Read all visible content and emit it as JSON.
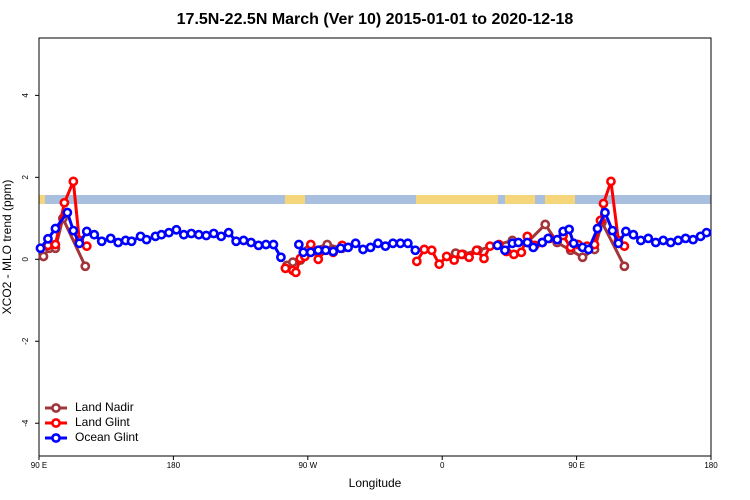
{
  "chart_data": {
    "type": "line",
    "title": "17.5N-22.5N March (Ver 10)   2015-01-01 to 2020-12-18",
    "x_label": "Longitude",
    "y_label": "XCO2 - MLO trend (ppm)",
    "xlim": [
      90,
      540
    ],
    "ylim": [
      -4.8,
      5.4
    ],
    "xticks": [
      {
        "value": 90,
        "label": "90 E"
      },
      {
        "value": 180,
        "label": "180"
      },
      {
        "value": 270,
        "label": "90 W"
      },
      {
        "value": 360,
        "label": "0"
      },
      {
        "value": 450,
        "label": "90 E"
      },
      {
        "value": 540,
        "label": "180"
      }
    ],
    "yticks": [
      -4,
      -2,
      0,
      2,
      4
    ],
    "legend": "bottom-left",
    "series": [
      {
        "name": "Land Nadir",
        "color": "#a0353a",
        "x": [
          93,
          97,
          101,
          106,
          121,
          200,
          256,
          260,
          265,
          270,
          283,
          293,
          350,
          369,
          374,
          384,
          407,
          417,
          429,
          437,
          446,
          454,
          462,
          467,
          482
        ],
        "values": [
          0.07,
          0.27,
          0.27,
          1.0,
          -0.17,
          null,
          -0.15,
          -0.07,
          -0.02,
          0.22,
          0.36,
          0.27,
          null,
          0.15,
          0.12,
          0.22,
          0.46,
          0.41,
          0.85,
          0.41,
          0.22,
          0.05,
          0.24,
          0.9,
          -0.17
        ]
      },
      {
        "name": "Land Glint",
        "color": "#ff0000",
        "x": [
          96,
          101,
          107,
          113,
          117,
          122,
          200,
          255,
          260,
          262,
          265,
          268,
          272,
          277,
          282,
          287,
          293,
          300,
          343,
          348,
          353,
          358,
          363,
          368,
          373,
          378,
          383,
          388,
          392,
          398,
          403,
          408,
          413,
          417,
          422,
          427,
          432,
          441,
          446,
          451,
          457,
          462,
          466,
          468,
          473,
          478,
          482
        ],
        "values": [
          0.34,
          0.36,
          1.38,
          1.9,
          0.46,
          0.32,
          null,
          -0.22,
          -0.27,
          -0.32,
          0.02,
          0.07,
          0.36,
          0,
          0.22,
          0.17,
          0.34,
          null,
          -0.05,
          0.24,
          0.22,
          -0.12,
          0.07,
          -0.02,
          0.12,
          0.05,
          0.22,
          0.02,
          0.32,
          0.36,
          0.19,
          0.12,
          0.17,
          0.56,
          0.34,
          0.41,
          0.51,
          0.58,
          0.29,
          0.36,
          0.32,
          0.36,
          0.95,
          1.36,
          1.9,
          0.46,
          0.32
        ]
      },
      {
        "name": "Ocean Glint",
        "color": "#0000ff",
        "x": [
          91,
          96,
          101,
          109,
          113,
          117,
          122,
          127,
          132,
          138,
          143,
          148,
          152,
          158,
          162,
          168,
          172,
          177,
          182,
          187,
          192,
          197,
          202,
          207,
          212,
          217,
          222,
          227,
          232,
          237,
          242,
          247,
          252,
          258,
          264,
          267,
          272,
          277,
          282,
          287,
          292,
          297,
          302,
          307,
          312,
          317,
          322,
          327,
          332,
          337,
          342,
          370,
          397,
          402,
          407,
          411,
          417,
          421,
          427,
          431,
          437,
          441,
          445,
          448,
          454,
          458,
          464,
          469,
          474,
          478,
          483,
          488,
          493,
          498,
          503,
          508,
          513,
          518,
          523,
          528,
          533,
          537
        ],
        "values": [
          0.27,
          0.5,
          0.75,
          1.14,
          0.7,
          0.39,
          0.68,
          0.6,
          0.44,
          0.51,
          0.41,
          0.46,
          0.44,
          0.56,
          0.48,
          0.56,
          0.6,
          0.65,
          0.72,
          0.6,
          0.63,
          0.6,
          0.58,
          0.63,
          0.56,
          0.65,
          0.44,
          0.46,
          0.41,
          0.34,
          0.36,
          0.36,
          0.05,
          null,
          0.36,
          0.17,
          0.17,
          0.22,
          0.22,
          0.19,
          0.27,
          0.29,
          0.39,
          0.24,
          0.29,
          0.39,
          0.32,
          0.39,
          0.39,
          0.39,
          0.22,
          null,
          0.34,
          0.22,
          0.39,
          0.41,
          0.41,
          0.29,
          0.41,
          0.51,
          0.48,
          0.68,
          0.73,
          0.39,
          0.29,
          0.24,
          0.75,
          1.14,
          0.7,
          0.39,
          0.68,
          0.6,
          0.46,
          0.51,
          0.41,
          0.46,
          0.41,
          0.46,
          0.51,
          0.48,
          0.56,
          0.65
        ]
      }
    ]
  }
}
